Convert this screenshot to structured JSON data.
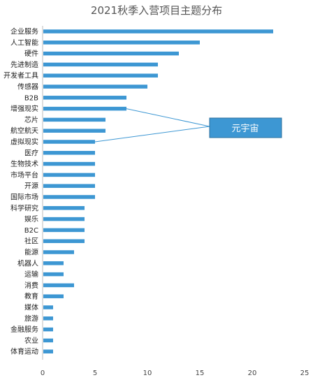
{
  "chart_data": {
    "type": "bar",
    "orientation": "horizontal",
    "title": "2021秋季入营项目主题分布",
    "categories": [
      "企业服务",
      "人工智能",
      "硬件",
      "先进制造",
      "开发者工具",
      "传感器",
      "B2B",
      "增强现实",
      "芯片",
      "航空航天",
      "虚拟现实",
      "医疗",
      "生物技术",
      "市场平台",
      "开源",
      "国际市场",
      "科学研究",
      "娱乐",
      "B2C",
      "社区",
      "能源",
      "机器人",
      "运输",
      "消费",
      "教育",
      "媒体",
      "旅游",
      "金融服务",
      "农业",
      "体育运动"
    ],
    "values": [
      22,
      15,
      13,
      11,
      11,
      10,
      8,
      8,
      6,
      6,
      5,
      5,
      5,
      5,
      5,
      5,
      4,
      4,
      4,
      4,
      3,
      2,
      2,
      3,
      2,
      1,
      1,
      1,
      1,
      1
    ],
    "xlim": [
      0,
      25
    ],
    "xticks": [
      0,
      5,
      10,
      15,
      20,
      25
    ],
    "grid": false,
    "bar_color": "#3d97d3",
    "annotation": {
      "text": "元宇宙",
      "box_color": "#3d97d3",
      "targets": [
        "增强现实",
        "虚拟现实"
      ]
    }
  }
}
